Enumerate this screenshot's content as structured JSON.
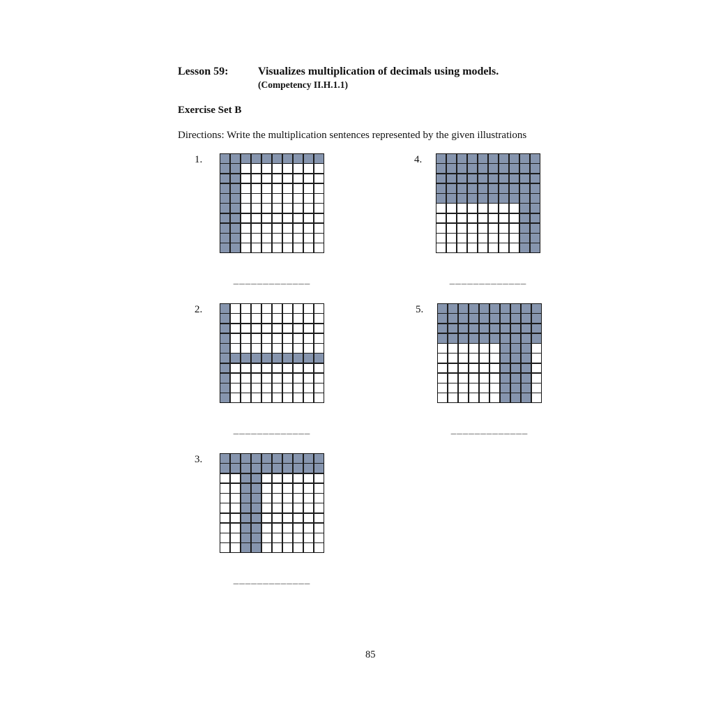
{
  "header": {
    "lesson_label": "Lesson 59:",
    "lesson_title": "Visualizes multiplication of decimals using models.",
    "competency": "(Competency II.H.1.1)",
    "exercise_set": "Exercise Set B",
    "directions": "Directions: Write the multiplication sentences represented by the given illustrations"
  },
  "colors": {
    "shaded": "#8695AE",
    "cell": "#ffffff",
    "grid_line": "#1c1c1c"
  },
  "problems": [
    {
      "number": "1.",
      "answer_line": "_____________",
      "grid": {
        "rows": 10,
        "cols": 10,
        "shaded_rows": [
          0
        ],
        "shaded_cols": [
          0,
          1
        ]
      }
    },
    {
      "number": "2.",
      "answer_line": "_____________",
      "grid": {
        "rows": 10,
        "cols": 10,
        "shaded_rows": [
          5
        ],
        "shaded_cols": [
          0
        ]
      }
    },
    {
      "number": "3.",
      "answer_line": "_____________",
      "grid": {
        "rows": 10,
        "cols": 10,
        "shaded_rows": [
          0,
          1
        ],
        "shaded_cols": [
          2,
          3
        ]
      }
    },
    {
      "number": "4.",
      "answer_line": "_____________",
      "grid": {
        "rows": 10,
        "cols": 10,
        "shaded_rows": [
          0,
          1,
          2,
          3,
          4
        ],
        "shaded_cols": [
          8,
          9
        ]
      }
    },
    {
      "number": "5.",
      "answer_line": "_____________",
      "grid": {
        "rows": 10,
        "cols": 10,
        "shaded_rows": [
          0,
          1,
          2,
          3
        ],
        "shaded_cols": [
          6,
          7,
          8
        ]
      }
    }
  ],
  "footer": {
    "page_number": "85"
  }
}
